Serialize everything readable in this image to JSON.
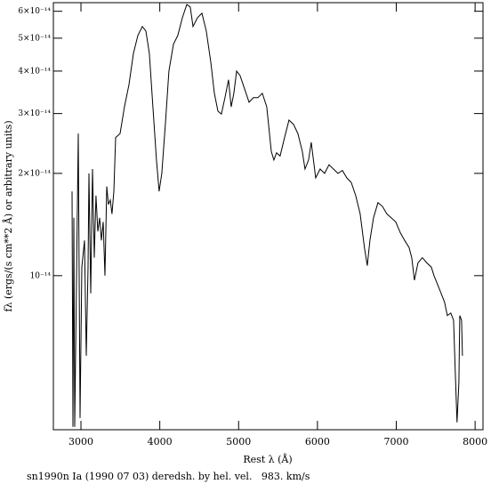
{
  "chart_data": {
    "type": "line",
    "x_label": "Rest λ (Å)",
    "y_label": "fλ (ergs/(s cm**2 Å) or arbitrary units)",
    "caption": "sn1990n Ia (1990 07 03) deredsh. by hel. vel.   983. km/s",
    "log_y": true,
    "color": "#000000",
    "xlim": [
      2650,
      8100
    ],
    "ylim": [
      3.52e-15,
      6.36e-14
    ],
    "xticks": [
      3000,
      4000,
      5000,
      6000,
      7000,
      8000
    ],
    "yticks": [
      {
        "value": 1e-14,
        "label": "10⁻¹⁴"
      },
      {
        "value": 2e-14,
        "label": "2×10⁻¹⁴"
      },
      {
        "value": 3e-14,
        "label": "3×10⁻¹⁴"
      },
      {
        "value": 4e-14,
        "label": "4×10⁻¹⁴"
      },
      {
        "value": 5e-14,
        "label": "5×10⁻¹⁴"
      },
      {
        "value": 6e-14,
        "label": "6×10⁻¹⁴"
      }
    ],
    "x": [
      2887,
      2898,
      2909,
      2921,
      2966,
      2988,
      3011,
      3045,
      3067,
      3090,
      3101,
      3124,
      3146,
      3169,
      3191,
      3214,
      3237,
      3259,
      3282,
      3304,
      3327,
      3349,
      3372,
      3394,
      3417,
      3440,
      3496,
      3552,
      3609,
      3665,
      3722,
      3778,
      3823,
      3868,
      3913,
      3958,
      3992,
      4026,
      4071,
      4116,
      4173,
      4229,
      4286,
      4342,
      4387,
      4421,
      4477,
      4534,
      4590,
      4647,
      4692,
      4737,
      4782,
      4827,
      4872,
      4906,
      4940,
      4974,
      5019,
      5075,
      5132,
      5188,
      5244,
      5301,
      5357,
      5414,
      5447,
      5481,
      5526,
      5583,
      5639,
      5696,
      5752,
      5808,
      5842,
      5887,
      5921,
      5978,
      6034,
      6090,
      6147,
      6203,
      6260,
      6316,
      6372,
      6429,
      6485,
      6542,
      6598,
      6632,
      6666,
      6711,
      6767,
      6824,
      6880,
      6936,
      6993,
      7049,
      7106,
      7162,
      7196,
      7230,
      7275,
      7331,
      7388,
      7444,
      7478,
      7523,
      7568,
      7613,
      7647,
      7692,
      7726,
      7749,
      7771,
      7794,
      7805,
      7828,
      7839
    ],
    "values": [
      1.77e-14,
      3.59e-15,
      1.48e-14,
      3.59e-15,
      2.62e-14,
      3.81e-15,
      1.06e-14,
      1.27e-14,
      5.81e-15,
      1.06e-14,
      2e-14,
      8.87e-15,
      2.06e-14,
      1.13e-14,
      1.72e-14,
      1.35e-14,
      1.48e-14,
      1.27e-14,
      1.44e-14,
      1e-14,
      1.83e-14,
      1.62e-14,
      1.67e-14,
      1.52e-14,
      1.77e-14,
      2.55e-14,
      2.62e-14,
      3.14e-14,
      3.65e-14,
      4.51e-14,
      5.09e-14,
      5.41e-14,
      5.25e-14,
      4.51e-14,
      3.14e-14,
      2.19e-14,
      1.77e-14,
      2e-14,
      2.79e-14,
      4e-14,
      4.8e-14,
      5.09e-14,
      5.74e-14,
      6.28e-14,
      6.18e-14,
      5.41e-14,
      5.74e-14,
      5.92e-14,
      5.25e-14,
      4.25e-14,
      3.44e-14,
      3.05e-14,
      2.99e-14,
      3.34e-14,
      3.77e-14,
      3.14e-14,
      3.44e-14,
      4e-14,
      3.88e-14,
      3.55e-14,
      3.24e-14,
      3.34e-14,
      3.34e-14,
      3.44e-14,
      3.14e-14,
      2.32e-14,
      2.19e-14,
      2.3e-14,
      2.25e-14,
      2.55e-14,
      2.87e-14,
      2.79e-14,
      2.62e-14,
      2.32e-14,
      2.06e-14,
      2.19e-14,
      2.47e-14,
      1.94e-14,
      2.06e-14,
      2e-14,
      2.12e-14,
      2.06e-14,
      2e-14,
      2.04e-14,
      1.94e-14,
      1.88e-14,
      1.72e-14,
      1.52e-14,
      1.2e-14,
      1.07e-14,
      1.27e-14,
      1.48e-14,
      1.64e-14,
      1.6e-14,
      1.52e-14,
      1.48e-14,
      1.44e-14,
      1.34e-14,
      1.27e-14,
      1.21e-14,
      1.13e-14,
      9.7e-15,
      1.09e-14,
      1.13e-14,
      1.09e-14,
      1.06e-14,
      1e-14,
      9.42e-15,
      8.87e-15,
      8.35e-15,
      7.63e-15,
      7.76e-15,
      7.4e-15,
      5.15e-15,
      3.7e-15,
      4.85e-15,
      7.63e-15,
      7.4e-15,
      5.81e-15
    ]
  }
}
